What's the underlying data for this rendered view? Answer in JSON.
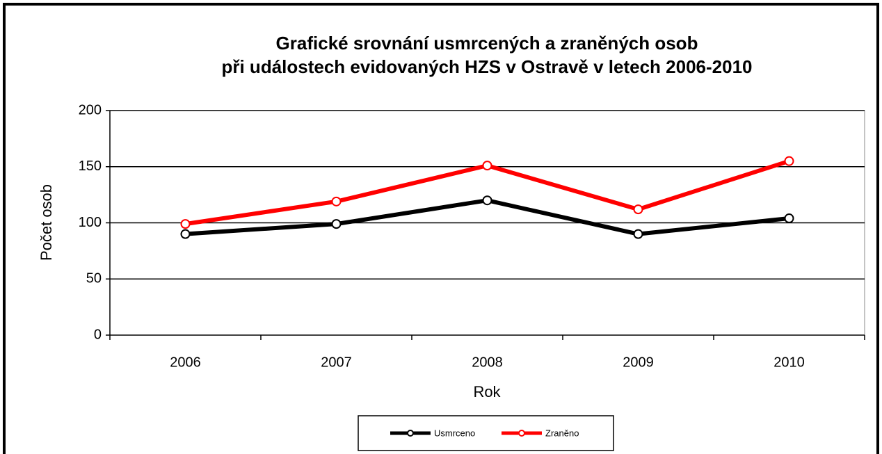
{
  "chart_data": {
    "type": "line",
    "title": [
      "Grafické srovnání usmrcených a zraněných osob",
      "při událostech evidovaných HZS v Ostravě v letech 2006-2010"
    ],
    "x_label": "Rok",
    "y_label": "Počet osob",
    "categories": [
      "2006",
      "2007",
      "2008",
      "2009",
      "2010"
    ],
    "series": [
      {
        "name": "Usmrceno",
        "color": "#000000",
        "values": [
          90,
          99,
          120,
          90,
          104
        ]
      },
      {
        "name": "Zraněno",
        "color": "#ff0000",
        "values": [
          99,
          119,
          151,
          112,
          155
        ]
      }
    ],
    "ylim": [
      0,
      200
    ],
    "yticks": [
      0,
      50,
      100,
      150,
      200
    ],
    "grid": true,
    "legend": "bottom"
  }
}
